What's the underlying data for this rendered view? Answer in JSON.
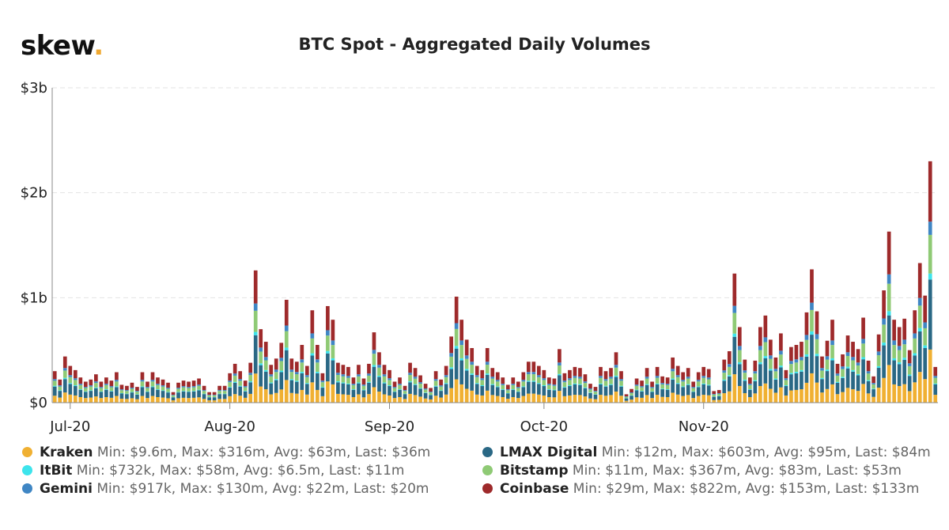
{
  "brand": {
    "name": "skew",
    "dot": "."
  },
  "chart_data": {
    "type": "bar",
    "stacked": true,
    "title": "BTC Spot - Aggregated Daily Volumes",
    "y_ticks": [
      {
        "value": 0,
        "label": "$0"
      },
      {
        "value": 1,
        "label": "$1b"
      },
      {
        "value": 2,
        "label": "$2b"
      },
      {
        "value": 3,
        "label": "$3b"
      }
    ],
    "ylim": [
      0,
      3
    ],
    "y_unit": "billions USD",
    "x_start": "2020-06-28",
    "x_ticks": [
      {
        "value": "2020-07-01",
        "label": "Jul-20"
      },
      {
        "value": "2020-08-01",
        "label": "Aug-20"
      },
      {
        "value": "2020-09-01",
        "label": "Sep-20"
      },
      {
        "value": "2020-10-01",
        "label": "Oct-20"
      },
      {
        "value": "2020-11-01",
        "label": "Nov-20"
      }
    ],
    "totals": [
      0.3,
      0.22,
      0.44,
      0.35,
      0.31,
      0.24,
      0.2,
      0.22,
      0.27,
      0.2,
      0.24,
      0.21,
      0.29,
      0.17,
      0.16,
      0.19,
      0.15,
      0.29,
      0.2,
      0.29,
      0.24,
      0.22,
      0.19,
      0.1,
      0.19,
      0.21,
      0.2,
      0.21,
      0.23,
      0.16,
      0.1,
      0.1,
      0.16,
      0.16,
      0.28,
      0.37,
      0.3,
      0.21,
      0.38,
      1.26,
      0.7,
      0.58,
      0.36,
      0.42,
      0.57,
      0.98,
      0.42,
      0.39,
      0.55,
      0.35,
      0.88,
      0.55,
      0.28,
      0.92,
      0.79,
      0.38,
      0.36,
      0.34,
      0.24,
      0.36,
      0.23,
      0.37,
      0.67,
      0.48,
      0.36,
      0.31,
      0.2,
      0.24,
      0.16,
      0.38,
      0.33,
      0.26,
      0.18,
      0.14,
      0.3,
      0.22,
      0.35,
      0.63,
      1.01,
      0.79,
      0.6,
      0.52,
      0.35,
      0.31,
      0.52,
      0.33,
      0.29,
      0.24,
      0.17,
      0.24,
      0.2,
      0.29,
      0.39,
      0.39,
      0.35,
      0.31,
      0.24,
      0.23,
      0.51,
      0.28,
      0.31,
      0.34,
      0.33,
      0.27,
      0.18,
      0.15,
      0.34,
      0.3,
      0.33,
      0.48,
      0.3,
      0.08,
      0.13,
      0.23,
      0.21,
      0.33,
      0.2,
      0.34,
      0.25,
      0.24,
      0.43,
      0.35,
      0.29,
      0.33,
      0.2,
      0.29,
      0.34,
      0.32,
      0.11,
      0.12,
      0.41,
      0.49,
      1.23,
      0.72,
      0.41,
      0.24,
      0.4,
      0.72,
      0.83,
      0.6,
      0.43,
      0.66,
      0.31,
      0.53,
      0.55,
      0.58,
      0.86,
      1.27,
      0.87,
      0.44,
      0.59,
      0.79,
      0.37,
      0.46,
      0.64,
      0.58,
      0.51,
      0.81,
      0.4,
      0.25,
      0.65,
      1.07,
      1.63,
      0.79,
      0.72,
      0.8,
      0.5,
      0.88,
      1.33,
      1.02,
      2.3,
      0.34
    ],
    "series": [
      {
        "name": "Kraken",
        "color": "#f0b032",
        "share": 0.22,
        "stats": "Min: $9.6m, Max: $316m, Avg: $63m, Last: $36m"
      },
      {
        "name": "LMAX Digital",
        "color": "#2a6885",
        "share": 0.29,
        "stats": "Min: $12m, Max: $603m, Avg: $95m, Last: $84m"
      },
      {
        "name": "ItBit",
        "color": "#3de4ec",
        "share": 0.025,
        "stats": "Min: $732k, Max: $58m, Avg: $6.5m, Last: $11m"
      },
      {
        "name": "Bitstamp",
        "color": "#8fca75",
        "share": 0.16,
        "stats": "Min: $11m, Max: $367m, Avg: $83m, Last: $53m"
      },
      {
        "name": "Gemini",
        "color": "#3f86c4",
        "share": 0.055,
        "stats": "Min: $917k, Max: $130m, Avg: $22m, Last: $20m"
      },
      {
        "name": "Coinbase",
        "color": "#9e2a2b",
        "share": 0.25,
        "stats": "Min: $29m, Max: $822m, Avg: $153m, Last: $133m"
      }
    ],
    "stack_order": [
      "Kraken",
      "LMAX Digital",
      "ItBit",
      "Bitstamp",
      "Gemini",
      "Coinbase"
    ],
    "grid": true,
    "legend_position": "bottom"
  }
}
